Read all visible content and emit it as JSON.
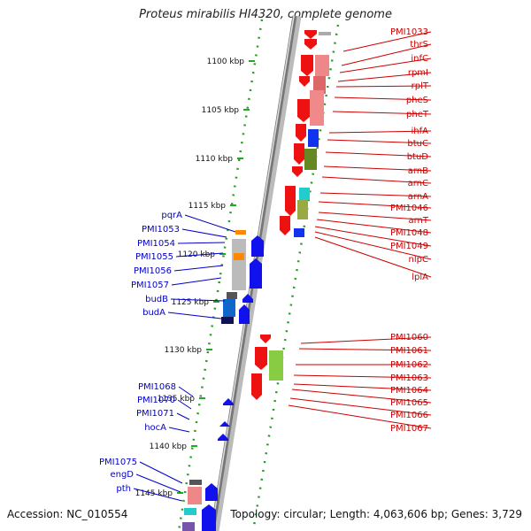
{
  "title": "Proteus mirabilis HI4320, complete genome",
  "accession": "Accession: NC_010554",
  "topology": "Topology: circular; Length: 4,063,606 bp; Genes: 3,729",
  "colors": {
    "forward": "#ee1111",
    "reverse": "#1111ee",
    "ticks": "#22aa22",
    "backbone": "#888888"
  },
  "scale_labels": [
    "1100 kbp",
    "1105 kbp",
    "1110 kbp",
    "1115 kbp",
    "1120 kbp",
    "1125 kbp",
    "1130 kbp",
    "1135 kbp",
    "1140 kbp",
    "1145 kbp"
  ],
  "genes_right": [
    "PMI1033",
    "thrS",
    "infC",
    "rpmI",
    "rplT",
    "pheS",
    "pheT",
    "ihfA",
    "btuC",
    "btuD",
    "arnB",
    "arnC",
    "arnA",
    "PMI1046",
    "arnT",
    "PMI1048",
    "PMI1049",
    "nlpC",
    "lplA",
    "PMI1060",
    "PMI1061",
    "PMI1062",
    "PMI1063",
    "PMI1064",
    "PMI1065",
    "PMI1066",
    "PMI1067"
  ],
  "genes_left": [
    "pqrA",
    "PMI1053",
    "PMI1054",
    "PMI1055",
    "PMI1056",
    "PMI1057",
    "budB",
    "budA",
    "PMI1068",
    "PMI1070",
    "PMI1071",
    "hocA",
    "PMI1075",
    "engD",
    "pth"
  ]
}
